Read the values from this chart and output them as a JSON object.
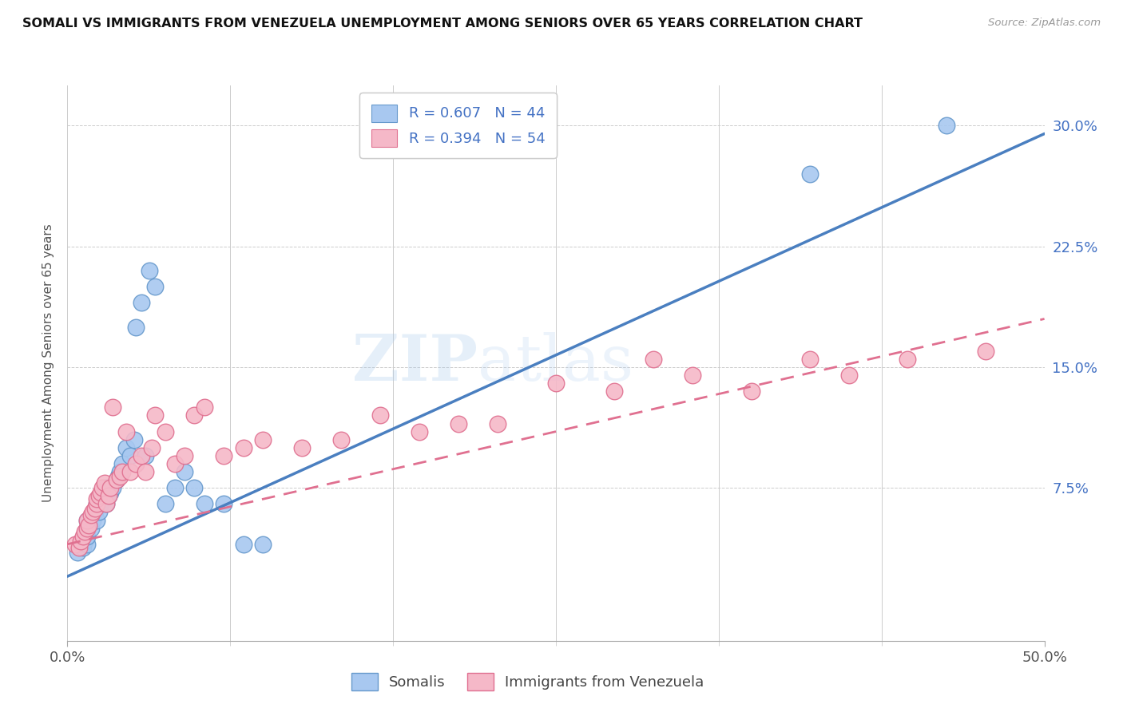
{
  "title": "SOMALI VS IMMIGRANTS FROM VENEZUELA UNEMPLOYMENT AMONG SENIORS OVER 65 YEARS CORRELATION CHART",
  "source": "Source: ZipAtlas.com",
  "ylabel": "Unemployment Among Seniors over 65 years",
  "ytick_labels": [
    "7.5%",
    "15.0%",
    "22.5%",
    "30.0%"
  ],
  "ytick_values": [
    0.075,
    0.15,
    0.225,
    0.3
  ],
  "xmin": 0.0,
  "xmax": 0.5,
  "ymin": -0.02,
  "ymax": 0.325,
  "legend_r1": "R = 0.607",
  "legend_n1": "N = 44",
  "legend_r2": "R = 0.394",
  "legend_n2": "N = 54",
  "somali_color": "#A8C8F0",
  "venezuela_color": "#F5B8C8",
  "somali_edge_color": "#6699CC",
  "venezuela_edge_color": "#E07090",
  "somali_line_color": "#4A7FC0",
  "venezuela_line_color": "#E07090",
  "legend_text_color": "#4472C4",
  "background_color": "#FFFFFF",
  "watermark_text1": "ZIP",
  "watermark_text2": "atlas",
  "somali_x": [
    0.005,
    0.007,
    0.008,
    0.009,
    0.01,
    0.01,
    0.01,
    0.01,
    0.012,
    0.013,
    0.014,
    0.015,
    0.015,
    0.016,
    0.017,
    0.018,
    0.019,
    0.02,
    0.02,
    0.021,
    0.022,
    0.023,
    0.025,
    0.026,
    0.027,
    0.028,
    0.03,
    0.032,
    0.034,
    0.035,
    0.038,
    0.04,
    0.042,
    0.045,
    0.05,
    0.055,
    0.06,
    0.065,
    0.07,
    0.08,
    0.09,
    0.1,
    0.38,
    0.45
  ],
  "somali_y": [
    0.035,
    0.04,
    0.038,
    0.042,
    0.04,
    0.045,
    0.05,
    0.055,
    0.05,
    0.055,
    0.06,
    0.055,
    0.065,
    0.06,
    0.065,
    0.07,
    0.068,
    0.065,
    0.075,
    0.07,
    0.072,
    0.075,
    0.08,
    0.082,
    0.085,
    0.09,
    0.1,
    0.095,
    0.105,
    0.175,
    0.19,
    0.095,
    0.21,
    0.2,
    0.065,
    0.075,
    0.085,
    0.075,
    0.065,
    0.065,
    0.04,
    0.04,
    0.27,
    0.3
  ],
  "venezuela_x": [
    0.004,
    0.006,
    0.007,
    0.008,
    0.009,
    0.01,
    0.01,
    0.011,
    0.012,
    0.013,
    0.014,
    0.015,
    0.015,
    0.016,
    0.017,
    0.018,
    0.019,
    0.02,
    0.021,
    0.022,
    0.023,
    0.025,
    0.027,
    0.028,
    0.03,
    0.032,
    0.035,
    0.038,
    0.04,
    0.043,
    0.045,
    0.05,
    0.055,
    0.06,
    0.065,
    0.07,
    0.08,
    0.09,
    0.1,
    0.12,
    0.14,
    0.16,
    0.18,
    0.2,
    0.22,
    0.25,
    0.28,
    0.3,
    0.32,
    0.35,
    0.38,
    0.4,
    0.43,
    0.47
  ],
  "venezuela_y": [
    0.04,
    0.038,
    0.042,
    0.045,
    0.048,
    0.05,
    0.055,
    0.052,
    0.058,
    0.06,
    0.062,
    0.065,
    0.068,
    0.07,
    0.072,
    0.075,
    0.078,
    0.065,
    0.07,
    0.075,
    0.125,
    0.08,
    0.082,
    0.085,
    0.11,
    0.085,
    0.09,
    0.095,
    0.085,
    0.1,
    0.12,
    0.11,
    0.09,
    0.095,
    0.12,
    0.125,
    0.095,
    0.1,
    0.105,
    0.1,
    0.105,
    0.12,
    0.11,
    0.115,
    0.115,
    0.14,
    0.135,
    0.155,
    0.145,
    0.135,
    0.155,
    0.145,
    0.155,
    0.16
  ],
  "blue_line_x0": 0.0,
  "blue_line_y0": 0.02,
  "blue_line_x1": 0.5,
  "blue_line_y1": 0.295,
  "pink_line_x0": 0.0,
  "pink_line_y0": 0.04,
  "pink_line_x1": 0.5,
  "pink_line_y1": 0.18
}
